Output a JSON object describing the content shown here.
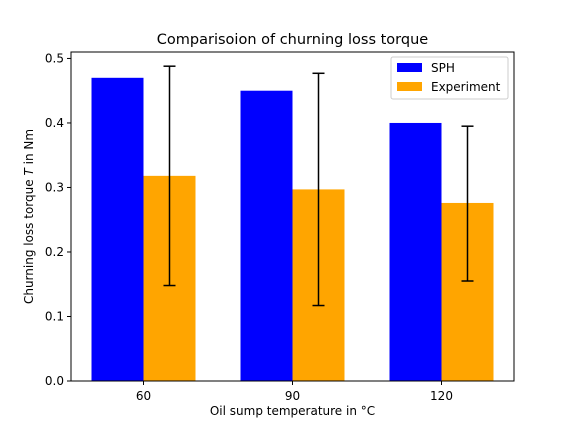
{
  "chart_data": {
    "type": "bar",
    "title": "Comparisoion of churning loss torque",
    "xlabel": "Oil sump temperature in °C",
    "ylabel_prefix": "Churning loss torque ",
    "ylabel_symbol": "T",
    "ylabel_suffix": " in Nm",
    "categories": [
      "60",
      "90",
      "120"
    ],
    "ylim": [
      0,
      0.51
    ],
    "yticks": [
      0.0,
      0.1,
      0.2,
      0.3,
      0.4,
      0.5
    ],
    "ytick_labels": [
      "0.0",
      "0.1",
      "0.2",
      "0.3",
      "0.4",
      "0.5"
    ],
    "grid": false,
    "legend_position": "top-right",
    "series": [
      {
        "name": "SPH",
        "color": "#0000ff",
        "values": [
          0.47,
          0.45,
          0.4
        ]
      },
      {
        "name": "Experiment",
        "color": "#ffa500",
        "values": [
          0.318,
          0.297,
          0.276
        ],
        "error_low": [
          0.148,
          0.117,
          0.155
        ],
        "error_high": [
          0.488,
          0.477,
          0.395
        ]
      }
    ]
  }
}
